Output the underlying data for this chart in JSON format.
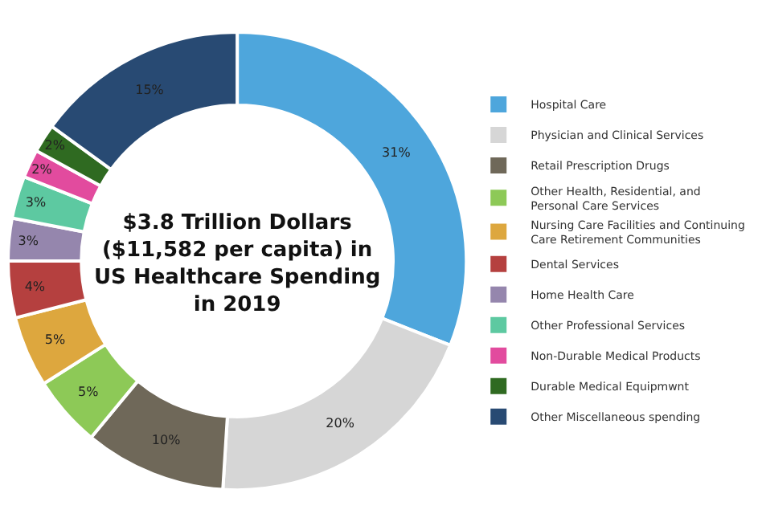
{
  "chart_data": {
    "type": "donut",
    "title": "$3.8 Trillion Dollars ($11,582 per capita) in US Healthcare Spending in 2019",
    "categories": [
      "Hospital Care",
      "Physician and Clinical Services",
      "Retail Prescription Drugs",
      "Other Health, Residential, and Personal Care Services",
      "Nursing Care Facilities and Continuing Care Retirement Communities",
      "Dental Services",
      "Home Health Care",
      "Other Professional Services",
      "Non-Durable Medical Products",
      "Durable Medical Equipmwnt",
      "Other Miscellaneous spending"
    ],
    "values": [
      31,
      20,
      10,
      5,
      5,
      4,
      3,
      3,
      2,
      2,
      15
    ],
    "colors": [
      "#4ea6dc",
      "#d6d6d6",
      "#6f6859",
      "#8dc957",
      "#dda73e",
      "#b5403f",
      "#9586ad",
      "#5dc9a1",
      "#e24b9e",
      "#2f6a21",
      "#284a73"
    ],
    "value_labels": [
      "31%",
      "20%",
      "10%",
      "5%",
      "5%",
      "4%",
      "3%",
      "3%",
      "2%",
      "2%",
      "15%"
    ],
    "legend": "right"
  }
}
